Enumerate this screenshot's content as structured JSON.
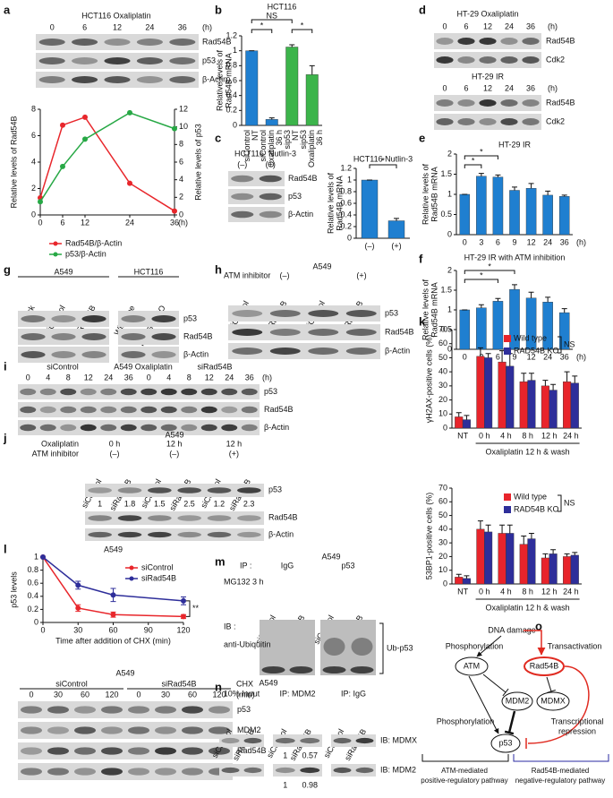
{
  "panel_labels": [
    "a",
    "b",
    "c",
    "d",
    "e",
    "f",
    "g",
    "h",
    "i",
    "j",
    "k",
    "l",
    "m",
    "n",
    "o"
  ],
  "chart_data": [
    {
      "type": "line",
      "x": [
        0,
        6,
        12,
        24,
        36
      ],
      "xlim": [
        0,
        36
      ],
      "xticks": [
        0,
        6,
        12,
        24,
        36
      ],
      "x_label": "(h)",
      "ylim": [
        0,
        8
      ],
      "yticks": [
        0,
        2,
        4,
        6,
        8
      ],
      "y_label": "Relative levels of Rad54B",
      "y2lim": [
        0,
        12
      ],
      "y2ticks": [
        0,
        2,
        4,
        6,
        8,
        10,
        12
      ],
      "y2_label": "Relative levels of p53",
      "series": [
        {
          "name": "Rad54B/β-Actin",
          "color": "#e8262b",
          "values": [
            1.3,
            6.8,
            7.4,
            2.4,
            0.3
          ]
        },
        {
          "name": "p53/β-Actin",
          "color": "#27a845",
          "values": [
            1.5,
            5.5,
            8.6,
            11.6,
            9.8
          ],
          "axis": "y2"
        }
      ]
    },
    {
      "type": "bar",
      "title": "HCT116",
      "categories": [
        [
          "siControl",
          "NT"
        ],
        [
          "siControl",
          "Oxaliplatin",
          "36 h"
        ],
        [
          "sip53",
          "NT"
        ],
        [
          "sip53",
          "Oxaliplatin",
          "36 h"
        ]
      ],
      "values": [
        1,
        0.08,
        1.05,
        0.68
      ],
      "errors": [
        0,
        0.02,
        0.03,
        0.12
      ],
      "colors": [
        "#1f7fd0",
        "#1f7fd0",
        "#3cb44b",
        "#3cb44b"
      ],
      "ylim": [
        0,
        1.2
      ],
      "yticks": [
        0,
        0.2,
        0.4,
        0.6,
        0.8,
        1,
        1.2
      ],
      "y_label": [
        "Relative levels of",
        "Rad54B mRNA"
      ],
      "annotations": [
        "NS",
        "*",
        "*"
      ]
    },
    {
      "type": "bar",
      "title": "HCT116  Nutlin-3",
      "categories": [
        "(–)",
        "(+)"
      ],
      "values": [
        1,
        0.3
      ],
      "errors": [
        0,
        0.04
      ],
      "color": "#1f7fd0",
      "ylim": [
        0,
        1.2
      ],
      "yticks": [
        0,
        0.2,
        0.4,
        0.6,
        0.8,
        1,
        1.2
      ],
      "y_label": [
        "Relative levels of",
        "Rad54B mRNA"
      ],
      "annotations": [
        "*"
      ]
    },
    {
      "type": "bar",
      "title": "HT-29 IR",
      "categories": [
        "0",
        "3",
        "6",
        "9",
        "12",
        "24",
        "36"
      ],
      "x_label": "(h)",
      "values": [
        1,
        1.45,
        1.43,
        1.1,
        1.15,
        0.98,
        0.95
      ],
      "errors": [
        0,
        0.07,
        0.05,
        0.08,
        0.12,
        0.1,
        0.03
      ],
      "color": "#1f7fd0",
      "ylim": [
        0,
        2
      ],
      "yticks": [
        0,
        0.5,
        1,
        1.5,
        2
      ],
      "y_label": [
        "Relative levels of",
        "Rad54B mRNA"
      ],
      "annotations": [
        "*",
        "*"
      ]
    },
    {
      "type": "bar",
      "title": "HT-29 IR with ATM inhibition",
      "categories": [
        "0",
        "3",
        "6",
        "9",
        "12",
        "24",
        "36"
      ],
      "x_label": "(h)",
      "values": [
        1,
        1.05,
        1.22,
        1.52,
        1.3,
        1.2,
        0.93
      ],
      "errors": [
        0,
        0.08,
        0.07,
        0.12,
        0.15,
        0.12,
        0.1
      ],
      "color": "#1f7fd0",
      "ylim": [
        0,
        2
      ],
      "yticks": [
        0,
        0.5,
        1,
        1.5,
        2
      ],
      "y_label": [
        "Relative levels of",
        "Rad54B mRNA"
      ],
      "annotations": [
        "*",
        "*"
      ]
    },
    {
      "type": "bar",
      "categories": [
        "NT",
        "0 h",
        "4 h",
        "8 h",
        "12 h",
        "24 h"
      ],
      "x_group_label": "Oxaliplatin 12 h & wash",
      "ylim": [
        0,
        70
      ],
      "yticks": [
        0,
        10,
        20,
        30,
        40,
        50,
        60,
        70
      ],
      "y_label": "γH2AX-positive cells (%)",
      "series": [
        {
          "name": "Wild type",
          "color": "#e8242b",
          "values": [
            8,
            51,
            47,
            33,
            30,
            33
          ],
          "errors": [
            3,
            6,
            8,
            6,
            4,
            7
          ]
        },
        {
          "name": "RAD54B KO",
          "color": "#2e2e9a",
          "values": [
            6,
            50,
            44,
            34,
            27,
            32
          ],
          "errors": [
            3,
            3,
            9,
            5,
            4,
            5
          ]
        }
      ],
      "annotations": [
        "NS"
      ]
    },
    {
      "type": "bar",
      "categories": [
        "NT",
        "0 h",
        "4 h",
        "8 h",
        "12 h",
        "24 h"
      ],
      "x_group_label": "Oxaliplatin 12 h & wash",
      "ylim": [
        0,
        70
      ],
      "yticks": [
        0,
        10,
        20,
        30,
        40,
        50,
        60,
        70
      ],
      "y_label": "53BP1-positive cells (%)",
      "series": [
        {
          "name": "Wild type",
          "color": "#e8242b",
          "values": [
            5,
            40,
            37,
            29,
            19,
            20
          ],
          "errors": [
            2,
            6,
            6,
            6,
            3,
            2
          ]
        },
        {
          "name": "RAD54B KO",
          "color": "#2e2e9a",
          "values": [
            4,
            38,
            37,
            33,
            22,
            21
          ],
          "errors": [
            2,
            5,
            6,
            4,
            3,
            2
          ]
        }
      ],
      "annotations": [
        "NS"
      ]
    },
    {
      "type": "line",
      "title": "A549",
      "x": [
        0,
        30,
        60,
        120
      ],
      "xlim": [
        0,
        120
      ],
      "xticks": [
        0,
        30,
        60,
        90,
        120
      ],
      "x_label": "Time after addition of CHX (min)",
      "ylim": [
        0,
        1
      ],
      "yticks": [
        0,
        0.2,
        0.4,
        0.6,
        0.8,
        1
      ],
      "y_label": "p53 levels",
      "series": [
        {
          "name": "siControl",
          "color": "#e8262b",
          "values": [
            1,
            0.22,
            0.12,
            0.09
          ],
          "errors": [
            0,
            0.05,
            0.04,
            0.03
          ]
        },
        {
          "name": "siRad54B",
          "color": "#2e2e9a",
          "values": [
            1,
            0.57,
            0.42,
            0.33
          ],
          "errors": [
            0,
            0.06,
            0.1,
            0.06
          ]
        }
      ],
      "annotations": [
        "**"
      ]
    }
  ],
  "blots": {
    "a": {
      "title": "HCT116 Oxaliplatin",
      "lanes": [
        "0",
        "6",
        "12",
        "24",
        "36"
      ],
      "unit": "(h)",
      "rows": [
        "Rad54B",
        "p53",
        "β-Actin"
      ]
    },
    "c": {
      "cell": "HCT116",
      "treatment": "Nutlin-3",
      "lanes": [
        "(–)",
        "(+)"
      ],
      "rows": [
        "Rad54B",
        "p53",
        "β-Actin"
      ]
    },
    "d": {
      "panels": [
        {
          "title": "HT-29 Oxaliplatin",
          "lanes": [
            "0",
            "6",
            "12",
            "24",
            "36"
          ],
          "unit": "(h)",
          "rows": [
            "Rad54B",
            "Cdk2"
          ]
        },
        {
          "title": "HT-29 IR",
          "lanes": [
            "0",
            "6",
            "12",
            "24",
            "36"
          ],
          "unit": "(h)",
          "rows": [
            "Rad54B",
            "Cdk2"
          ]
        }
      ]
    },
    "g": {
      "groups": [
        "A549",
        "HCT116"
      ],
      "lanes": [
        "Mock",
        "siControl",
        "siRad54B",
        "Wild type",
        "RAD54B KO"
      ],
      "rows": [
        "p53",
        "Rad54B",
        "β-Actin"
      ]
    },
    "h": {
      "inhibitor": "ATM inhibitor",
      "conditions": [
        "(–)",
        "(+)"
      ],
      "cell": "A549",
      "lanes": [
        "siControl",
        "siRad54B",
        "siControl",
        "siRad54B"
      ],
      "rows": [
        "p53",
        "Rad54B",
        "β-Actin"
      ]
    },
    "i": {
      "groups": [
        "siControl",
        "A549 Oxaliplatin",
        "siRad54B"
      ],
      "lanes": [
        "0",
        "4",
        "8",
        "12",
        "24",
        "36",
        "0",
        "4",
        "8",
        "12",
        "24",
        "36"
      ],
      "unit": "(h)",
      "rows": [
        "p53",
        "Rad54B",
        "β-Actin"
      ]
    },
    "j": {
      "cell": "A549",
      "conditions": [
        "Oxaliplatin",
        "ATM inhibitor"
      ],
      "columns": [
        [
          "0 h",
          "(–)"
        ],
        [
          "12 h",
          "(–)"
        ],
        [
          "12 h",
          "(+)"
        ]
      ],
      "lanes": [
        "siControl",
        "siRad54B",
        "siControl",
        "siRad54B",
        "siControl",
        "siRad54B"
      ],
      "rows": [
        "p53",
        "Rad54B",
        "β-Actin"
      ],
      "ratios": [
        1,
        1.8,
        1.5,
        2.5,
        1.2,
        2.3
      ]
    },
    "l": {
      "cell": "A549",
      "groups": [
        "siControl",
        "siRad54B"
      ],
      "treatment": "CHX",
      "unit": "(min)",
      "lanes": [
        "0",
        "30",
        "60",
        "120",
        "0",
        "30",
        "60",
        "120"
      ],
      "rows": [
        "p53",
        "MDM2",
        "Rad54B",
        "β-Actin"
      ]
    },
    "m": {
      "ip": "IP :",
      "groups": [
        "IgG",
        "p53"
      ],
      "cell": "A549",
      "treatment": "MG132 3 h",
      "lanes": [
        "siControl",
        "siRad54B",
        "siControl",
        "siRad54B"
      ],
      "ib": "IB :",
      "antibody": "anti-Ubiquitin",
      "product": "Ub-p53"
    },
    "n": {
      "cell": "A549",
      "groups": [
        "10% Input",
        "IP: MDM2",
        "IP: IgG"
      ],
      "lanes": [
        "siControl",
        "siRad54B",
        "siControl",
        "siRad54B",
        "siControl",
        "siRad54B"
      ],
      "rows": [
        "IB: MDMX",
        "IB: MDM2"
      ],
      "ratios": [
        [
          1,
          0.57
        ],
        [
          1,
          0.98
        ]
      ]
    }
  },
  "diagram": {
    "trigger": "DNA damage",
    "edges": [
      "Phosphorylation",
      "Transactivation",
      "Phosphorylation",
      [
        "Transcriptional",
        "repression"
      ]
    ],
    "nodes": [
      "ATM",
      "Rad54B",
      "MDM2",
      "MDMX",
      "p53"
    ],
    "pathways": [
      [
        "ATM-mediated",
        "positive-regulatory pathway"
      ],
      [
        "Rad54B-mediated",
        "negative-regulatory pathway"
      ]
    ]
  }
}
